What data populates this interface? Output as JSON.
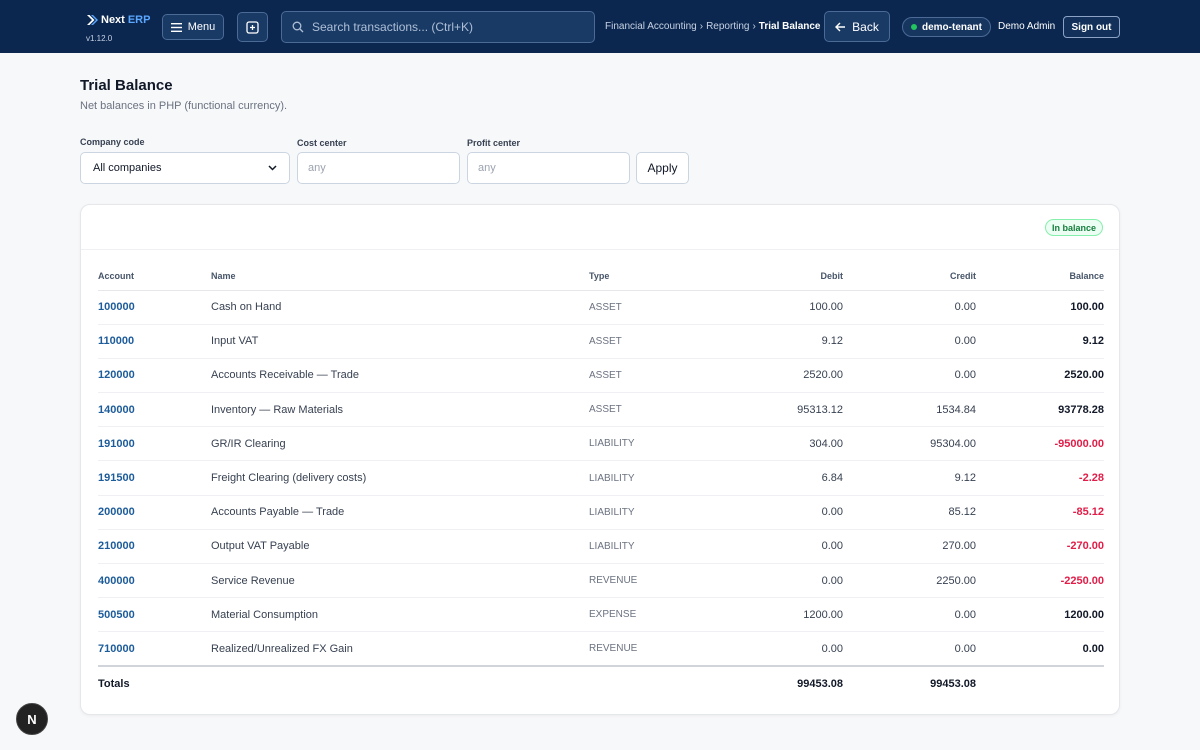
{
  "app": {
    "name_part1": "Next",
    "name_part2": "ERP",
    "version": "v1.12.0"
  },
  "topbar": {
    "menu_label": "Menu",
    "search_placeholder": "Search transactions... (Ctrl+K)",
    "breadcrumb": [
      "Financial Accounting",
      "Reporting",
      "Trial Balance"
    ],
    "back_label": "Back",
    "tenant": "demo-tenant",
    "user": "Demo Admin",
    "signout_label": "Sign out"
  },
  "page": {
    "title": "Trial Balance",
    "subtitle": "Net balances in PHP (functional currency)."
  },
  "filters": {
    "company_label": "Company code",
    "company_value": "All companies",
    "cost_center_label": "Cost center",
    "cost_center_placeholder": "any",
    "profit_center_label": "Profit center",
    "profit_center_placeholder": "any",
    "apply_label": "Apply"
  },
  "status_badge": "In balance",
  "table": {
    "headers": {
      "account": "Account",
      "name": "Name",
      "type": "Type",
      "debit": "Debit",
      "credit": "Credit",
      "balance": "Balance"
    },
    "rows": [
      {
        "account": "100000",
        "name": "Cash on Hand",
        "type": "ASSET",
        "debit": "100.00",
        "credit": "0.00",
        "balance": "100.00",
        "negative": false
      },
      {
        "account": "110000",
        "name": "Input VAT",
        "type": "ASSET",
        "debit": "9.12",
        "credit": "0.00",
        "balance": "9.12",
        "negative": false
      },
      {
        "account": "120000",
        "name": "Accounts Receivable — Trade",
        "type": "ASSET",
        "debit": "2520.00",
        "credit": "0.00",
        "balance": "2520.00",
        "negative": false
      },
      {
        "account": "140000",
        "name": "Inventory — Raw Materials",
        "type": "ASSET",
        "debit": "95313.12",
        "credit": "1534.84",
        "balance": "93778.28",
        "negative": false
      },
      {
        "account": "191000",
        "name": "GR/IR Clearing",
        "type": "LIABILITY",
        "debit": "304.00",
        "credit": "95304.00",
        "balance": "-95000.00",
        "negative": true
      },
      {
        "account": "191500",
        "name": "Freight Clearing (delivery costs)",
        "type": "LIABILITY",
        "debit": "6.84",
        "credit": "9.12",
        "balance": "-2.28",
        "negative": true
      },
      {
        "account": "200000",
        "name": "Accounts Payable — Trade",
        "type": "LIABILITY",
        "debit": "0.00",
        "credit": "85.12",
        "balance": "-85.12",
        "negative": true
      },
      {
        "account": "210000",
        "name": "Output VAT Payable",
        "type": "LIABILITY",
        "debit": "0.00",
        "credit": "270.00",
        "balance": "-270.00",
        "negative": true
      },
      {
        "account": "400000",
        "name": "Service Revenue",
        "type": "REVENUE",
        "debit": "0.00",
        "credit": "2250.00",
        "balance": "-2250.00",
        "negative": true
      },
      {
        "account": "500500",
        "name": "Material Consumption",
        "type": "EXPENSE",
        "debit": "1200.00",
        "credit": "0.00",
        "balance": "1200.00",
        "negative": false
      },
      {
        "account": "710000",
        "name": "Realized/Unrealized FX Gain",
        "type": "REVENUE",
        "debit": "0.00",
        "credit": "0.00",
        "balance": "0.00",
        "negative": false
      }
    ],
    "totals": {
      "label": "Totals",
      "debit": "99453.08",
      "credit": "99453.08"
    }
  },
  "fab_label": "N",
  "colors": {
    "topbar": "#0b2750",
    "account_link": "#1d5c9b",
    "negative": "#e11d48",
    "badge_green": "#15803d"
  }
}
